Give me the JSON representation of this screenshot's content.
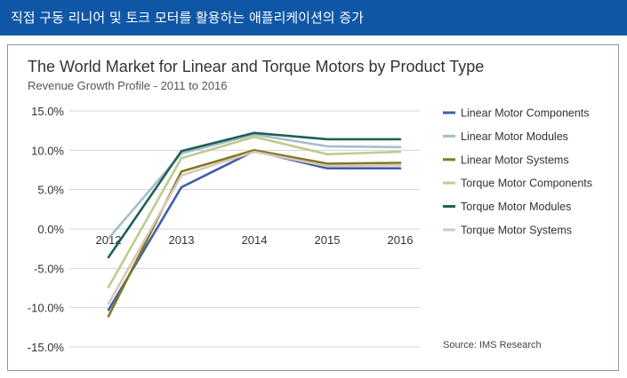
{
  "banner": {
    "title": "직접 구동 리니어 및 토크 모터를 활용하는 애플리케이션의 증가"
  },
  "colors": {
    "banner": "#0f57a6",
    "frame": "#8a96a8",
    "gridline": "#cfd4da"
  },
  "chart_data": {
    "type": "line",
    "title": "The World Market for Linear and Torque Motors by Product Type",
    "subtitle": "Revenue Growth Profile - 2011 to 2016",
    "source": "Source: IMS Research",
    "x": [
      "2012",
      "2013",
      "2014",
      "2015",
      "2016"
    ],
    "ylim": [
      -15,
      15
    ],
    "yticks": [
      15,
      10,
      5,
      0,
      -5,
      -10,
      -15
    ],
    "ytick_labels": [
      "15.0%",
      "10.0%",
      "5.0%",
      "0.0%",
      "-5.0%",
      "-10.0%",
      "-15.0%"
    ],
    "grid": true,
    "legend_position": "right",
    "series": [
      {
        "name": "Linear Motor Components",
        "color": "#3f5fa8",
        "values": [
          -10.3,
          5.3,
          9.9,
          7.7,
          7.7
        ]
      },
      {
        "name": "Linear Motor Modules",
        "color": "#a8bccd",
        "values": [
          -1.2,
          9.6,
          12.0,
          10.5,
          10.4
        ]
      },
      {
        "name": "Linear Motor Systems",
        "color": "#7f7a22",
        "values": [
          -11.1,
          7.3,
          10.0,
          8.3,
          8.4
        ]
      },
      {
        "name": "Torque Motor Components",
        "color": "#bccd8f",
        "values": [
          -7.4,
          9.0,
          11.7,
          9.5,
          9.8
        ]
      },
      {
        "name": "Torque Motor Modules",
        "color": "#1e6152",
        "values": [
          -3.6,
          9.9,
          12.2,
          11.4,
          11.4
        ]
      },
      {
        "name": "Torque Motor Systems",
        "color": "#d9c6bb",
        "values": [
          -9.5,
          6.8,
          9.8,
          8.0,
          8.1
        ]
      }
    ]
  }
}
